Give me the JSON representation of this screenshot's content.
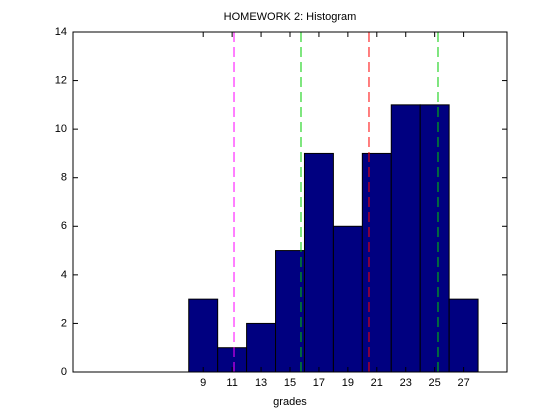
{
  "chart_data": {
    "type": "histogram",
    "title": "HOMEWORK 2: Histogram",
    "x_label": "grades",
    "bins": [
      8,
      10,
      12,
      14,
      16,
      18,
      20,
      22,
      24,
      26,
      28
    ],
    "values": [
      3,
      1,
      2,
      5,
      9,
      6,
      9,
      11,
      11,
      3
    ],
    "color": "#000080",
    "xlim": [
      0,
      30
    ],
    "xticks": [
      9,
      11,
      13,
      15,
      17,
      19,
      21,
      23,
      25,
      27
    ],
    "ylim": [
      0,
      14
    ],
    "yticks": [
      0,
      2,
      4,
      6,
      8,
      10,
      12,
      14
    ],
    "reference_lines": [
      {
        "x": 11.13,
        "color": "#ff00ff"
      },
      {
        "x": 15.76,
        "color": "#00cc00"
      },
      {
        "x": 20.46,
        "color": "#ff0000"
      },
      {
        "x": 25.23,
        "color": "#00cc00"
      }
    ]
  }
}
